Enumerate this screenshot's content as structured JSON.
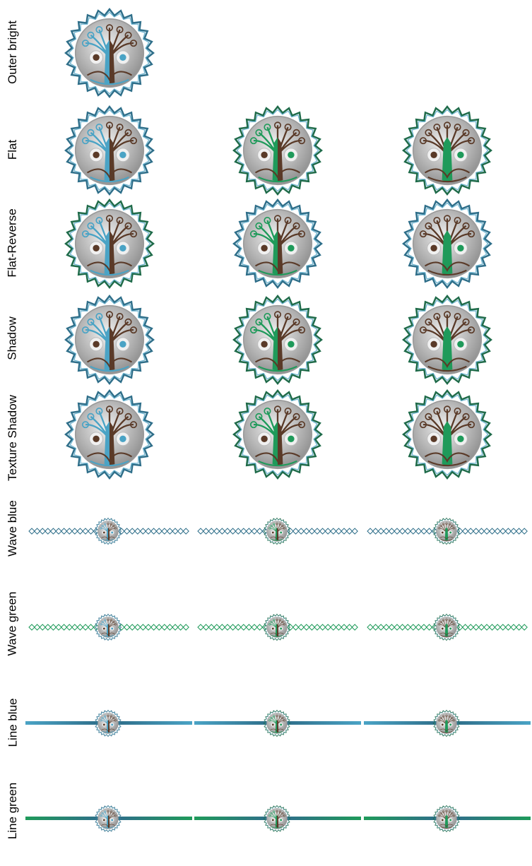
{
  "colors": {
    "blue": "#4aa3c5",
    "blue_dark": "#2f6f8a",
    "green": "#1f9a5a",
    "green_dark": "#1f6b4a",
    "brown": "#5a3a28",
    "silver_light": "#f2f2f2",
    "silver_dark": "#8a8a8a"
  },
  "rows": [
    {
      "label": "Outer bright",
      "style": "badge"
    },
    {
      "label": "Flat",
      "style": "badge"
    },
    {
      "label": "Flat-Reverse",
      "style": "badge"
    },
    {
      "label": "Shadow",
      "style": "badge"
    },
    {
      "label": "Texture Shadow",
      "style": "badge"
    },
    {
      "label": "Wave blue",
      "style": "wave"
    },
    {
      "label": "Wave green",
      "style": "wave"
    },
    {
      "label": "Line blue",
      "style": "line"
    },
    {
      "label": "Line green",
      "style": "line"
    }
  ],
  "variants": [
    "blue-brown",
    "green-brown",
    "brown-green"
  ]
}
